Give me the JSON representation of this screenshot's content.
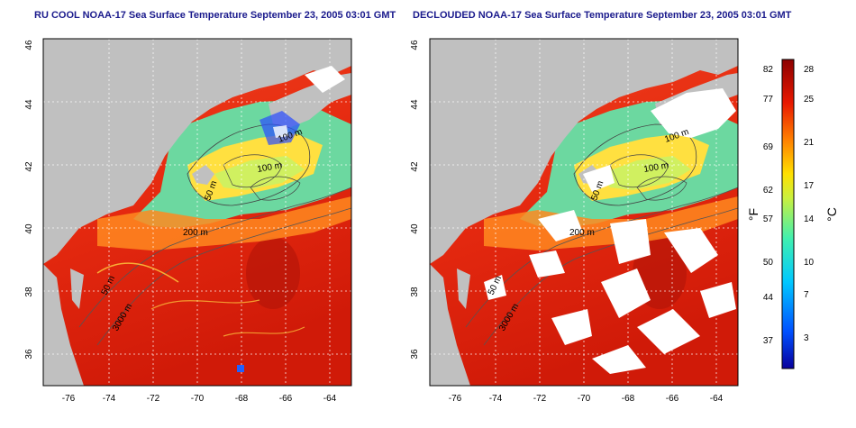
{
  "panels": [
    {
      "title": "RU COOL NOAA-17 Sea Surface Temperature September 23, 2005 03:01 GMT",
      "clouds_masked": false,
      "contour_labels": [
        "100 m",
        "100 m",
        "50 m",
        "200 m",
        "50 m",
        "3000 m"
      ]
    },
    {
      "title": "DECLOUDED NOAA-17 Sea Surface Temperature September 23, 2005 03:01 GMT",
      "clouds_masked": true,
      "contour_labels": [
        "100 m",
        "100 m",
        "50 m",
        "200 m",
        "50 m",
        "3000 m"
      ]
    }
  ],
  "axes": {
    "x_ticks": [
      "-76",
      "-74",
      "-72",
      "-70",
      "-68",
      "-66",
      "-64"
    ],
    "y_ticks": [
      "46",
      "44",
      "42",
      "40",
      "38",
      "36"
    ],
    "x_range": [
      -77.0,
      -63.0
    ],
    "y_range": [
      35.0,
      46.0
    ]
  },
  "colorbar": {
    "left_unit": "°F",
    "right_unit": "°C",
    "fahrenheit_ticks": [
      "82",
      "77",
      "69",
      "62",
      "57",
      "50",
      "44",
      "37"
    ],
    "celsius_ticks": [
      "28",
      "25",
      "21",
      "17",
      "14",
      "10",
      "7",
      "3"
    ],
    "colors": [
      "#08009c",
      "#0050ff",
      "#00c8ff",
      "#40f0b0",
      "#c8f040",
      "#ffe000",
      "#ff8000",
      "#e81800",
      "#8c0000"
    ]
  },
  "colors": {
    "land": "#c0c0c0",
    "cloud": "#ffffff",
    "warm_water": "#e62a10",
    "cool_water": "#6cd8a0",
    "title": "#1a1a8c"
  }
}
